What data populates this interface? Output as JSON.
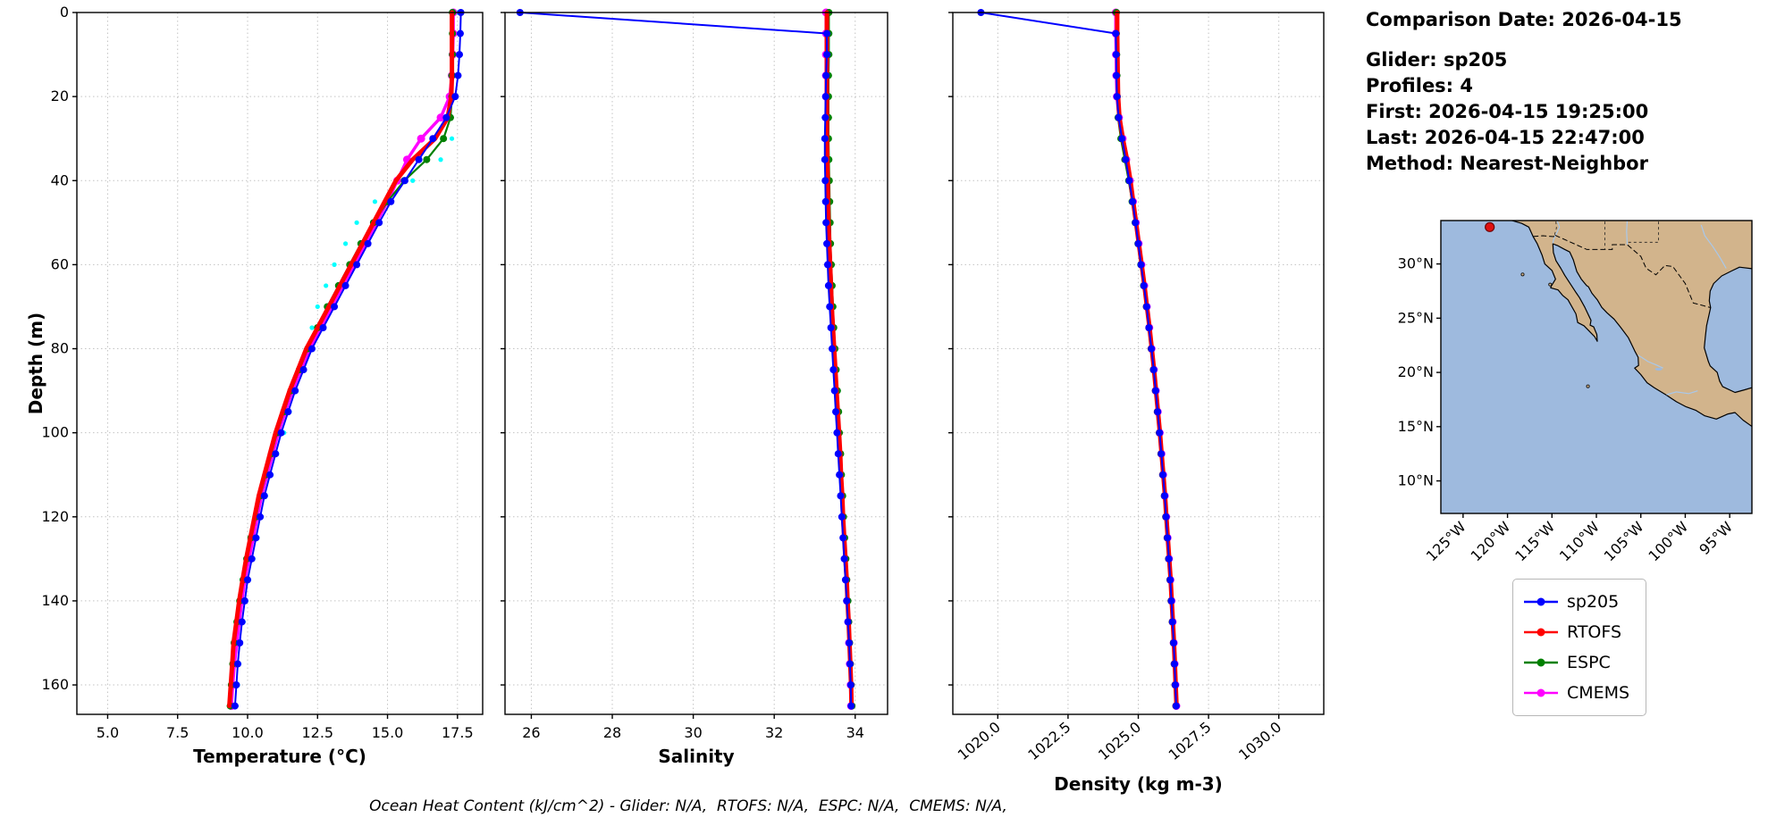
{
  "info": {
    "title": "Comparison Date: 2026-04-15",
    "lines": [
      "Glider: sp205",
      "Profiles: 4",
      "First: 2026-04-15 19:25:00",
      "Last: 2026-04-15 22:47:00",
      "Method: Nearest-Neighbor"
    ]
  },
  "caption": {
    "text": "Ocean Heat Content (kJ/cm^2) - Glider: N/A,  RTOFS: N/A,  ESPC: N/A,  CMEMS: N/A,"
  },
  "legend": {
    "entries": [
      {
        "label": "sp205",
        "color": "#0000ff"
      },
      {
        "label": "RTOFS",
        "color": "#ff0000"
      },
      {
        "label": "ESPC",
        "color": "#008000"
      },
      {
        "label": "CMEMS",
        "color": "#ff00ff"
      }
    ]
  },
  "chart_data": {
    "type": "line",
    "description": "Glider vs model vertical profiles of temperature, salinity and density",
    "depth_m": [
      0,
      5,
      10,
      15,
      20,
      25,
      30,
      35,
      40,
      45,
      50,
      55,
      60,
      65,
      70,
      75,
      80,
      85,
      90,
      95,
      100,
      105,
      110,
      115,
      120,
      125,
      130,
      135,
      140,
      145,
      150,
      155,
      160,
      165
    ],
    "depth_axis": {
      "label": "Depth (m)",
      "ticks": [
        0,
        20,
        40,
        60,
        80,
        100,
        120,
        140,
        160
      ],
      "range": [
        0,
        167
      ],
      "inverted": true
    },
    "grid": true,
    "charts": [
      {
        "id": "temperature",
        "xlabel": "Temperature (°C)",
        "xlim": [
          3.9,
          18.4
        ],
        "xticks": [
          {
            "v": 5.0,
            "label": "5.0"
          },
          {
            "v": 7.5,
            "label": "7.5"
          },
          {
            "v": 10.0,
            "label": "10.0"
          },
          {
            "v": 12.5,
            "label": "12.5"
          },
          {
            "v": 15.0,
            "label": "15.0"
          },
          {
            "v": 17.5,
            "label": "17.5"
          }
        ],
        "series": [
          {
            "name": "glider-individual-profiles",
            "color": "#00ffff",
            "line_width": 0,
            "marker": true,
            "marker_size": 2.6,
            "values": [
              17.5,
              17.55,
              17.5,
              17.45,
              17.35,
              17.2,
              17.3,
              16.9,
              15.9,
              14.55,
              13.9,
              13.5,
              13.1,
              12.8,
              12.5,
              12.3,
              12.2,
              11.9,
              11.7,
              11.5,
              11.3,
              11.05,
              10.85,
              10.65,
              10.5,
              10.35,
              10.2,
              10.05,
              9.95,
              9.85,
              9.75,
              9.7,
              9.65,
              9.6
            ]
          },
          {
            "name": "CMEMS",
            "color": "#ff00ff",
            "line_width": 3.5,
            "marker": true,
            "marker_size": 4.5,
            "values": [
              17.35,
              17.35,
              17.33,
              17.3,
              17.22,
              16.9,
              16.2,
              15.7,
              15.35,
              15.0,
              14.6,
              14.2,
              13.8,
              13.4,
              13.0,
              12.6,
              12.22,
              11.9,
              11.6,
              11.35,
              11.1,
              10.9,
              10.7,
              10.5,
              10.35,
              10.2,
              10.05,
              9.9,
              9.8,
              9.7,
              9.62,
              9.53,
              9.47,
              9.42
            ]
          },
          {
            "name": "ESPC",
            "color": "#008000",
            "line_width": 2.2,
            "marker": true,
            "marker_size": 4,
            "values": [
              17.32,
              17.32,
              17.32,
              17.3,
              17.3,
              17.25,
              17.0,
              16.4,
              15.6,
              15.0,
              14.5,
              14.05,
              13.65,
              13.25,
              12.85,
              12.5,
              12.15,
              11.85,
              11.55,
              11.3,
              11.05,
              10.85,
              10.65,
              10.45,
              10.3,
              10.12,
              9.97,
              9.84,
              9.72,
              9.62,
              9.52,
              9.47,
              9.42,
              9.38
            ]
          },
          {
            "name": "RTOFS",
            "color": "#ff0000",
            "line_width": 5,
            "marker": false,
            "values": [
              17.3,
              17.3,
              17.3,
              17.3,
              17.28,
              17.15,
              16.7,
              15.9,
              15.3,
              14.9,
              14.5,
              14.1,
              13.7,
              13.3,
              12.9,
              12.5,
              12.1,
              11.8,
              11.5,
              11.25,
              11.0,
              10.8,
              10.6,
              10.4,
              10.25,
              10.1,
              9.95,
              9.82,
              9.7,
              9.6,
              9.5,
              9.45,
              9.4,
              9.35
            ]
          },
          {
            "name": "sp205",
            "color": "#0000ff",
            "line_width": 2,
            "marker": true,
            "marker_size": 4,
            "values": [
              17.62,
              17.6,
              17.57,
              17.52,
              17.42,
              17.1,
              16.62,
              16.12,
              15.62,
              15.12,
              14.7,
              14.3,
              13.9,
              13.5,
              13.1,
              12.7,
              12.3,
              12.0,
              11.7,
              11.45,
              11.2,
              11.0,
              10.8,
              10.6,
              10.45,
              10.3,
              10.15,
              10.0,
              9.9,
              9.8,
              9.72,
              9.65,
              9.6,
              9.55
            ]
          }
        ]
      },
      {
        "id": "salinity",
        "xlabel": "Salinity",
        "xlim": [
          25.35,
          34.8
        ],
        "xticks": [
          {
            "v": 26,
            "label": "26"
          },
          {
            "v": 28,
            "label": "28"
          },
          {
            "v": 30,
            "label": "30"
          },
          {
            "v": 32,
            "label": "32"
          },
          {
            "v": 34,
            "label": "34"
          }
        ],
        "series": [
          {
            "name": "CMEMS",
            "color": "#ff00ff",
            "line_width": 3.5,
            "marker": true,
            "marker_size": 4.5,
            "values": [
              33.28,
              33.28,
              33.28,
              33.28,
              33.28,
              33.28,
              33.28,
              33.29,
              33.3,
              33.31,
              33.32,
              33.34,
              33.36,
              33.39,
              33.41,
              33.44,
              33.47,
              33.5,
              33.53,
              33.56,
              33.59,
              33.62,
              33.64,
              33.67,
              33.69,
              33.72,
              33.75,
              33.78,
              33.8,
              33.83,
              33.85,
              33.87,
              33.89,
              33.9
            ]
          },
          {
            "name": "ESPC",
            "color": "#008000",
            "line_width": 2.2,
            "marker": true,
            "marker_size": 4,
            "values": [
              33.35,
              33.35,
              33.35,
              33.34,
              33.34,
              33.34,
              33.34,
              33.35,
              33.36,
              33.37,
              33.38,
              33.39,
              33.41,
              33.43,
              33.45,
              33.47,
              33.5,
              33.53,
              33.56,
              33.59,
              33.61,
              33.64,
              33.66,
              33.69,
              33.71,
              33.74,
              33.77,
              33.79,
              33.82,
              33.84,
              33.86,
              33.88,
              33.9,
              33.92
            ]
          },
          {
            "name": "RTOFS",
            "color": "#ff0000",
            "line_width": 5,
            "marker": false,
            "values": [
              33.3,
              33.3,
              33.3,
              33.3,
              33.3,
              33.3,
              33.3,
              33.31,
              33.32,
              33.33,
              33.34,
              33.36,
              33.38,
              33.4,
              33.42,
              33.45,
              33.48,
              33.51,
              33.54,
              33.57,
              33.6,
              33.63,
              33.65,
              33.68,
              33.7,
              33.73,
              33.76,
              33.79,
              33.81,
              33.84,
              33.86,
              33.88,
              33.9,
              33.91
            ]
          },
          {
            "name": "sp205",
            "color": "#0000ff",
            "line_width": 2,
            "marker": true,
            "marker_size": 4,
            "values": [
              25.72,
              33.3,
              33.3,
              33.28,
              33.27,
              33.26,
              33.25,
              33.25,
              33.26,
              33.27,
              33.28,
              33.3,
              33.32,
              33.34,
              33.37,
              33.4,
              33.43,
              33.46,
              33.49,
              33.52,
              33.55,
              33.58,
              33.61,
              33.64,
              33.67,
              33.7,
              33.73,
              33.76,
              33.79,
              33.82,
              33.85,
              33.87,
              33.89,
              33.9
            ]
          }
        ]
      },
      {
        "id": "density",
        "xlabel": "Density (kg m-3)",
        "xlim": [
          1018.4,
          1031.6
        ],
        "xticks": [
          {
            "v": 1020.0,
            "label": "1020.0"
          },
          {
            "v": 1022.5,
            "label": "1022.5"
          },
          {
            "v": 1025.0,
            "label": "1025.0"
          },
          {
            "v": 1027.5,
            "label": "1027.5"
          },
          {
            "v": 1030.0,
            "label": "1030.0"
          }
        ],
        "series": [
          {
            "name": "CMEMS",
            "color": "#ff00ff",
            "line_width": 3.5,
            "marker": true,
            "marker_size": 4.5,
            "values": [
              1024.2,
              1024.2,
              1024.21,
              1024.22,
              1024.24,
              1024.31,
              1024.44,
              1024.57,
              1024.7,
              1024.81,
              1024.91,
              1025.01,
              1025.11,
              1025.21,
              1025.3,
              1025.39,
              1025.47,
              1025.55,
              1025.62,
              1025.69,
              1025.76,
              1025.82,
              1025.88,
              1025.94,
              1025.99,
              1026.04,
              1026.09,
              1026.14,
              1026.18,
              1026.22,
              1026.26,
              1026.29,
              1026.32,
              1026.35
            ]
          },
          {
            "name": "ESPC",
            "color": "#008000",
            "line_width": 2.2,
            "marker": true,
            "marker_size": 4,
            "values": [
              1024.22,
              1024.22,
              1024.23,
              1024.24,
              1024.25,
              1024.28,
              1024.38,
              1024.52,
              1024.66,
              1024.78,
              1024.89,
              1024.99,
              1025.09,
              1025.19,
              1025.29,
              1025.38,
              1025.46,
              1025.54,
              1025.61,
              1025.68,
              1025.75,
              1025.81,
              1025.87,
              1025.93,
              1025.98,
              1026.03,
              1026.08,
              1026.13,
              1026.17,
              1026.21,
              1026.25,
              1026.28,
              1026.31,
              1026.34
            ]
          },
          {
            "name": "RTOFS",
            "color": "#ff0000",
            "line_width": 5,
            "marker": false,
            "values": [
              1024.25,
              1024.25,
              1024.26,
              1024.27,
              1024.28,
              1024.33,
              1024.45,
              1024.6,
              1024.72,
              1024.82,
              1024.92,
              1025.02,
              1025.12,
              1025.22,
              1025.31,
              1025.4,
              1025.48,
              1025.56,
              1025.63,
              1025.7,
              1025.77,
              1025.83,
              1025.89,
              1025.95,
              1026.0,
              1026.05,
              1026.1,
              1026.15,
              1026.19,
              1026.23,
              1026.27,
              1026.3,
              1026.33,
              1026.36
            ]
          },
          {
            "name": "sp205",
            "color": "#0000ff",
            "line_width": 2,
            "marker": true,
            "marker_size": 4,
            "values": [
              1019.4,
              1024.2,
              1024.21,
              1024.22,
              1024.24,
              1024.3,
              1024.42,
              1024.55,
              1024.68,
              1024.8,
              1024.9,
              1025.0,
              1025.1,
              1025.2,
              1025.3,
              1025.38,
              1025.47,
              1025.55,
              1025.62,
              1025.69,
              1025.76,
              1025.82,
              1025.88,
              1025.94,
              1025.99,
              1026.04,
              1026.09,
              1026.14,
              1026.18,
              1026.22,
              1026.26,
              1026.29,
              1026.32,
              1026.35
            ]
          }
        ]
      }
    ]
  },
  "map": {
    "extent": {
      "lon": [
        -127.5,
        -92.5
      ],
      "lat": [
        7,
        34
      ]
    },
    "ocean_color": "#9ebade",
    "land_color": "#d2b48c",
    "xticks": [
      {
        "v": -125,
        "label": "125°W"
      },
      {
        "v": -120,
        "label": "120°W"
      },
      {
        "v": -115,
        "label": "115°W"
      },
      {
        "v": -110,
        "label": "110°W"
      },
      {
        "v": -105,
        "label": "105°W"
      },
      {
        "v": -100,
        "label": "100°W"
      },
      {
        "v": -95,
        "label": "95°W"
      }
    ],
    "yticks": [
      {
        "v": 30,
        "label": "30°N"
      },
      {
        "v": 25,
        "label": "25°N"
      },
      {
        "v": 20,
        "label": "20°N"
      },
      {
        "v": 15,
        "label": "15°N"
      },
      {
        "v": 10,
        "label": "10°N"
      }
    ],
    "glider_marker": {
      "lon": -122.0,
      "lat": 33.4,
      "color": "#e01010",
      "edge": "#700000"
    }
  }
}
